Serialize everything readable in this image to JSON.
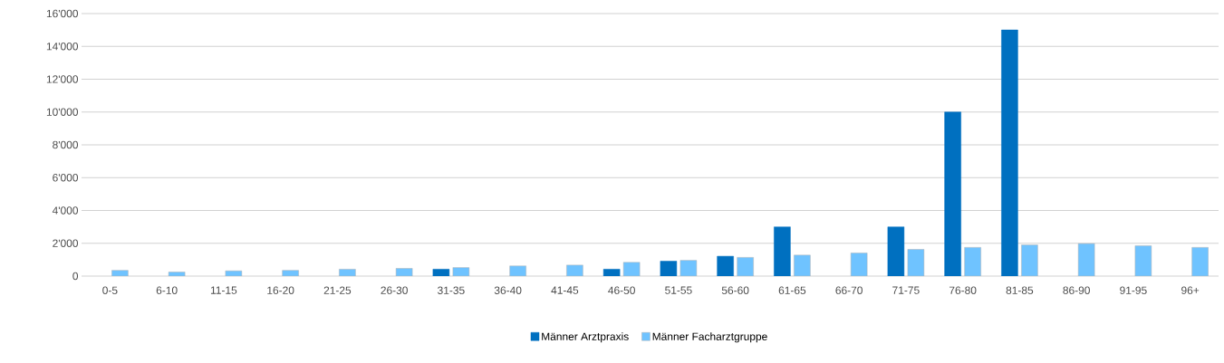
{
  "chart_data": {
    "type": "bar",
    "categories": [
      "0-5",
      "6-10",
      "11-15",
      "16-20",
      "21-25",
      "26-30",
      "31-35",
      "36-40",
      "41-45",
      "46-50",
      "51-55",
      "56-60",
      "61-65",
      "66-70",
      "71-75",
      "76-80",
      "81-85",
      "86-90",
      "91-95",
      "96+"
    ],
    "series": [
      {
        "name": "Männer Arztpraxis",
        "color": "#0070c0",
        "values": [
          null,
          null,
          null,
          null,
          null,
          null,
          420,
          null,
          null,
          420,
          910,
          1210,
          3000,
          null,
          3000,
          10000,
          15000,
          null,
          null,
          null
        ]
      },
      {
        "name": "Männer Facharztgruppe",
        "color": "#6fc3ff",
        "values": [
          350,
          250,
          320,
          350,
          420,
          470,
          520,
          620,
          670,
          840,
          960,
          1140,
          1280,
          1410,
          1630,
          1750,
          1900,
          1980,
          1850,
          1750
        ]
      }
    ],
    "ylim": [
      0,
      16000
    ],
    "yticks": [
      0,
      {
        "value": 2000,
        "label": "2'000"
      },
      {
        "value": 4000,
        "label": "4'000"
      },
      {
        "value": 6000,
        "label": "6'000"
      },
      {
        "value": 8000,
        "label": "8'000"
      },
      {
        "value": 10000,
        "label": "10'000"
      },
      {
        "value": 12000,
        "label": "12'000"
      },
      {
        "value": 14000,
        "label": "14'000"
      },
      {
        "value": 16000,
        "label": "16'000"
      }
    ],
    "grid": "y",
    "legend": "bottom"
  }
}
